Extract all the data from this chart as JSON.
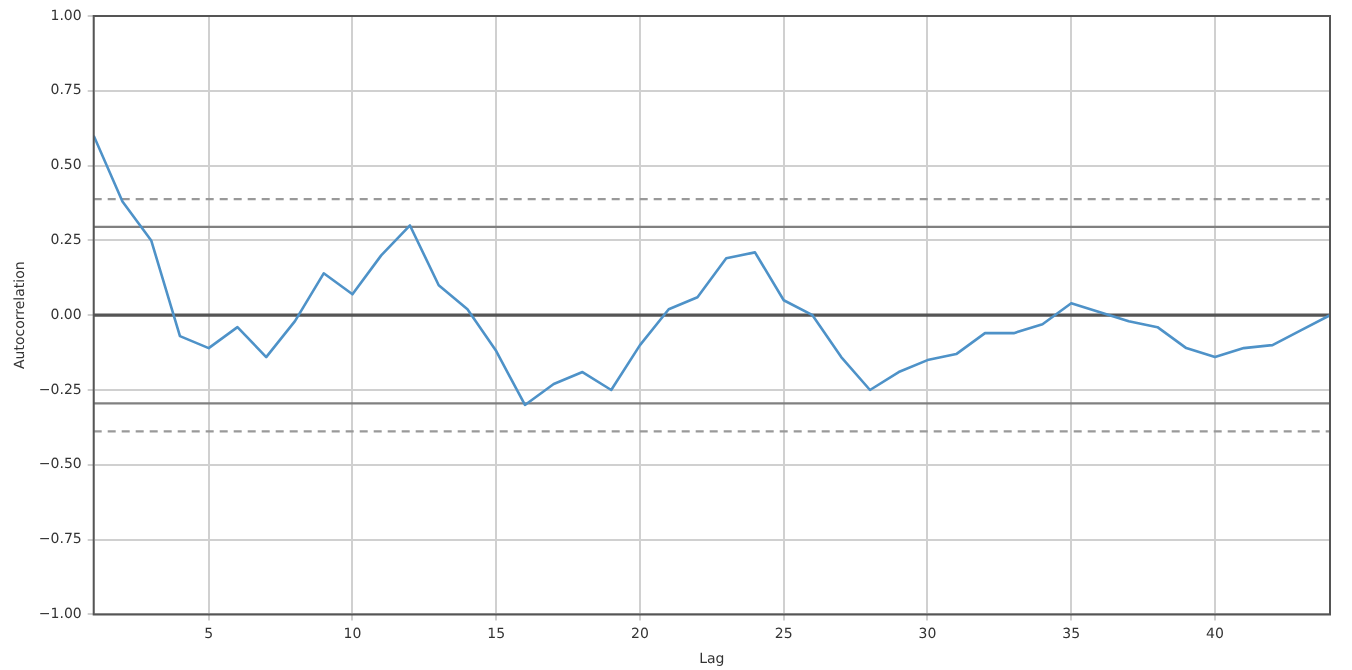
{
  "chart_data": {
    "type": "line",
    "xlabel": "Lag",
    "ylabel": "Autocorrelation",
    "x": [
      1,
      2,
      3,
      4,
      5,
      6,
      7,
      8,
      9,
      10,
      11,
      12,
      13,
      14,
      15,
      16,
      17,
      18,
      19,
      20,
      21,
      22,
      23,
      24,
      25,
      26,
      27,
      28,
      29,
      30,
      31,
      32,
      33,
      34,
      35,
      36,
      37,
      38,
      39,
      40,
      41,
      42,
      43,
      44
    ],
    "series": [
      {
        "color": "#4e92c8",
        "values": [
          0.6,
          0.38,
          0.25,
          -0.07,
          -0.11,
          -0.04,
          -0.14,
          -0.02,
          0.14,
          0.07,
          0.2,
          0.3,
          0.1,
          0.02,
          -0.12,
          -0.3,
          -0.23,
          -0.19,
          -0.25,
          -0.1,
          0.02,
          0.06,
          0.19,
          0.21,
          0.05,
          0.0,
          -0.14,
          -0.25,
          -0.19,
          -0.15,
          -0.13,
          -0.06,
          -0.06,
          -0.03,
          0.04,
          0.01,
          -0.02,
          -0.04,
          -0.11,
          -0.14,
          -0.11,
          -0.1,
          -0.05,
          0.0
        ]
      }
    ],
    "xlim": [
      1,
      44
    ],
    "xticks": [
      5,
      10,
      15,
      20,
      25,
      30,
      35,
      40
    ],
    "ylim": [
      -1,
      1
    ],
    "yticks": [
      {
        "value": -1,
        "label": "−1.00"
      },
      {
        "value": -0.75,
        "label": "−0.75"
      },
      {
        "value": -0.5,
        "label": "−0.50"
      },
      {
        "value": -0.25,
        "label": "−0.25"
      },
      {
        "value": 0,
        "label": "0.00"
      },
      {
        "value": 0.25,
        "label": "0.25"
      },
      {
        "value": 0.5,
        "label": "0.50"
      },
      {
        "value": 0.75,
        "label": "0.75"
      },
      {
        "value": 1,
        "label": "1.00"
      }
    ],
    "ref_lines": [
      {
        "axis": "y",
        "value": 0,
        "color": "#555555",
        "line_style": "solid"
      },
      {
        "axis": "y",
        "value": 0.295,
        "color": "#808080",
        "line_style": "solid"
      },
      {
        "axis": "y",
        "value": -0.295,
        "color": "#808080",
        "line_style": "solid"
      },
      {
        "axis": "y",
        "value": 0.388,
        "color": "#999999",
        "line_style": "dashed"
      },
      {
        "axis": "y",
        "value": -0.388,
        "color": "#999999",
        "line_style": "dashed"
      }
    ],
    "grid": true,
    "marker": "none",
    "line_style": "solid",
    "legend": false
  }
}
